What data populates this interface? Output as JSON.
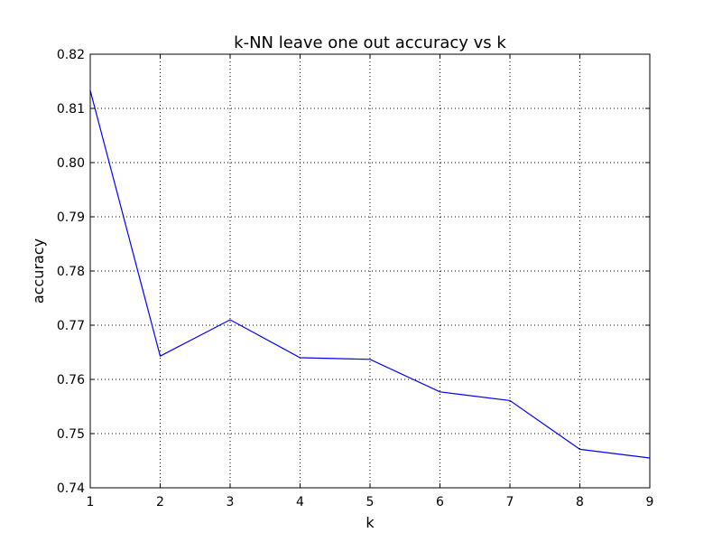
{
  "chart_data": {
    "type": "line",
    "title": "k-NN leave one out accuracy vs k",
    "xlabel": "k",
    "ylabel": "accuracy",
    "x": [
      1,
      2,
      3,
      4,
      5,
      6,
      7,
      8,
      9
    ],
    "series": [
      {
        "values": [
          0.8133,
          0.7643,
          0.771,
          0.764,
          0.7637,
          0.7577,
          0.7561,
          0.7471,
          0.7455
        ],
        "color": "#0000ff"
      }
    ],
    "xticks": [
      "1",
      "2",
      "3",
      "4",
      "5",
      "6",
      "7",
      "8",
      "9"
    ],
    "yticks": [
      "0.74",
      "0.75",
      "0.76",
      "0.77",
      "0.78",
      "0.79",
      "0.80",
      "0.81",
      "0.82"
    ],
    "xlim": [
      1,
      9
    ],
    "ylim": [
      0.74,
      0.82
    ],
    "grid": true
  }
}
